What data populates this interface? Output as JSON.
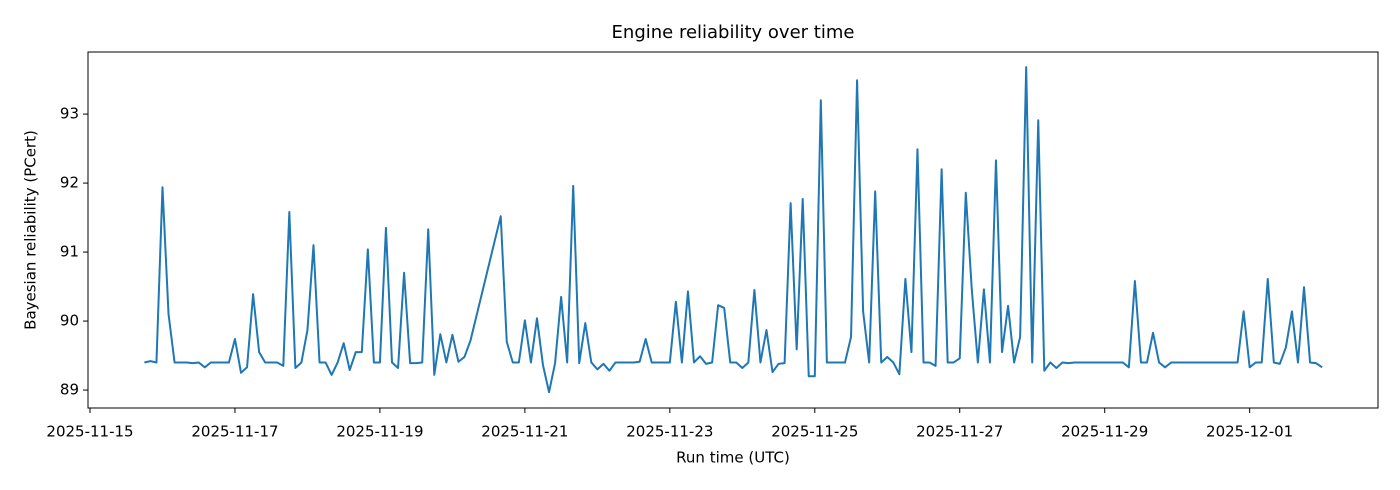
{
  "chart_data": {
    "type": "line",
    "title": "Engine reliability over time",
    "x_label": "Run time (UTC)",
    "y_label": "Bayesian reliability (PCert)",
    "color": "#1f77b4",
    "grid": false,
    "xlim": [
      "2025-11-14 23:20",
      "2025-12-02 18:30"
    ],
    "xticks": [
      "2025-11-15",
      "2025-11-17",
      "2025-11-19",
      "2025-11-21",
      "2025-11-23",
      "2025-11-25",
      "2025-11-27",
      "2025-11-29",
      "2025-12-01"
    ],
    "ylim": [
      88.74,
      93.9
    ],
    "yticks": [
      89,
      90,
      91,
      92,
      93
    ],
    "x": [
      "2025-11-15 18:00",
      "2025-11-15 20:00",
      "2025-11-15 22:00",
      "2025-11-16 00:00",
      "2025-11-16 02:00",
      "2025-11-16 04:00",
      "2025-11-16 06:00",
      "2025-11-16 08:00",
      "2025-11-16 10:00",
      "2025-11-16 12:00",
      "2025-11-16 14:00",
      "2025-11-16 16:00",
      "2025-11-16 18:00",
      "2025-11-16 20:00",
      "2025-11-16 22:00",
      "2025-11-17 00:00",
      "2025-11-17 02:00",
      "2025-11-17 04:00",
      "2025-11-17 06:00",
      "2025-11-17 08:00",
      "2025-11-17 10:00",
      "2025-11-17 12:00",
      "2025-11-17 14:00",
      "2025-11-17 16:00",
      "2025-11-17 18:00",
      "2025-11-17 20:00",
      "2025-11-17 22:00",
      "2025-11-18 00:00",
      "2025-11-18 02:00",
      "2025-11-18 04:00",
      "2025-11-18 06:00",
      "2025-11-18 08:00",
      "2025-11-18 10:00",
      "2025-11-18 12:00",
      "2025-11-18 14:00",
      "2025-11-18 16:00",
      "2025-11-18 18:00",
      "2025-11-18 20:00",
      "2025-11-18 22:00",
      "2025-11-19 00:00",
      "2025-11-19 02:00",
      "2025-11-19 04:00",
      "2025-11-19 06:00",
      "2025-11-19 08:00",
      "2025-11-19 10:00",
      "2025-11-19 12:00",
      "2025-11-19 14:00",
      "2025-11-19 16:00",
      "2025-11-19 18:00",
      "2025-11-19 20:00",
      "2025-11-19 22:00",
      "2025-11-20 00:00",
      "2025-11-20 02:00",
      "2025-11-20 04:00",
      "2025-11-20 06:00",
      "2025-11-20 16:00",
      "2025-11-20 18:00",
      "2025-11-20 20:00",
      "2025-11-20 22:00",
      "2025-11-21 00:00",
      "2025-11-21 02:00",
      "2025-11-21 04:00",
      "2025-11-21 06:00",
      "2025-11-21 08:00",
      "2025-11-21 10:00",
      "2025-11-21 12:00",
      "2025-11-21 14:00",
      "2025-11-21 16:00",
      "2025-11-21 18:00",
      "2025-11-21 20:00",
      "2025-11-21 22:00",
      "2025-11-22 00:00",
      "2025-11-22 02:00",
      "2025-11-22 04:00",
      "2025-11-22 06:00",
      "2025-11-22 08:00",
      "2025-11-22 10:00",
      "2025-11-22 12:00",
      "2025-11-22 14:00",
      "2025-11-22 16:00",
      "2025-11-22 18:00",
      "2025-11-22 20:00",
      "2025-11-22 22:00",
      "2025-11-23 00:00",
      "2025-11-23 02:00",
      "2025-11-23 04:00",
      "2025-11-23 06:00",
      "2025-11-23 08:00",
      "2025-11-23 10:00",
      "2025-11-23 12:00",
      "2025-11-23 14:00",
      "2025-11-23 16:00",
      "2025-11-23 18:00",
      "2025-11-23 20:00",
      "2025-11-23 22:00",
      "2025-11-24 00:00",
      "2025-11-24 02:00",
      "2025-11-24 04:00",
      "2025-11-24 06:00",
      "2025-11-24 08:00",
      "2025-11-24 10:00",
      "2025-11-24 12:00",
      "2025-11-24 14:00",
      "2025-11-24 16:00",
      "2025-11-24 18:00",
      "2025-11-24 20:00",
      "2025-11-24 22:00",
      "2025-11-25 00:00",
      "2025-11-25 02:00",
      "2025-11-25 04:00",
      "2025-11-25 06:00",
      "2025-11-25 08:00",
      "2025-11-25 10:00",
      "2025-11-25 12:00",
      "2025-11-25 14:00",
      "2025-11-25 16:00",
      "2025-11-25 18:00",
      "2025-11-25 20:00",
      "2025-11-25 22:00",
      "2025-11-26 00:00",
      "2025-11-26 02:00",
      "2025-11-26 04:00",
      "2025-11-26 06:00",
      "2025-11-26 08:00",
      "2025-11-26 10:00",
      "2025-11-26 12:00",
      "2025-11-26 14:00",
      "2025-11-26 16:00",
      "2025-11-26 18:00",
      "2025-11-26 20:00",
      "2025-11-26 22:00",
      "2025-11-27 00:00",
      "2025-11-27 02:00",
      "2025-11-27 04:00",
      "2025-11-27 06:00",
      "2025-11-27 08:00",
      "2025-11-27 10:00",
      "2025-11-27 12:00",
      "2025-11-27 14:00",
      "2025-11-27 16:00",
      "2025-11-27 18:00",
      "2025-11-27 20:00",
      "2025-11-27 22:00",
      "2025-11-28 00:00",
      "2025-11-28 02:00",
      "2025-11-28 04:00",
      "2025-11-28 06:00",
      "2025-11-28 08:00",
      "2025-11-28 10:00",
      "2025-11-28 12:00",
      "2025-11-28 14:00",
      "2025-11-28 16:00",
      "2025-11-28 18:00",
      "2025-11-28 20:00",
      "2025-11-28 22:00",
      "2025-11-29 00:00",
      "2025-11-29 02:00",
      "2025-11-29 04:00",
      "2025-11-29 06:00",
      "2025-11-29 08:00",
      "2025-11-29 10:00",
      "2025-11-29 12:00",
      "2025-11-29 14:00",
      "2025-11-29 16:00",
      "2025-11-29 18:00",
      "2025-11-29 20:00",
      "2025-11-29 22:00",
      "2025-11-30 00:00",
      "2025-11-30 02:00",
      "2025-11-30 04:00",
      "2025-11-30 06:00",
      "2025-11-30 08:00",
      "2025-11-30 10:00",
      "2025-11-30 12:00",
      "2025-11-30 14:00",
      "2025-11-30 16:00",
      "2025-11-30 18:00",
      "2025-11-30 20:00",
      "2025-11-30 22:00",
      "2025-12-01 00:00",
      "2025-12-01 02:00",
      "2025-12-01 04:00",
      "2025-12-01 06:00",
      "2025-12-01 08:00",
      "2025-12-01 10:00",
      "2025-12-01 12:00",
      "2025-12-01 14:00",
      "2025-12-01 16:00",
      "2025-12-01 18:00",
      "2025-12-01 20:00",
      "2025-12-01 22:00",
      "2025-12-02 00:00"
    ],
    "values": [
      89.4,
      89.42,
      89.4,
      91.94,
      90.1,
      89.4,
      89.4,
      89.4,
      89.39,
      89.4,
      89.33,
      89.4,
      89.4,
      89.4,
      89.4,
      89.74,
      89.25,
      89.33,
      90.39,
      89.55,
      89.4,
      89.4,
      89.4,
      89.35,
      91.58,
      89.32,
      89.4,
      89.87,
      91.1,
      89.4,
      89.4,
      89.22,
      89.4,
      89.68,
      89.29,
      89.55,
      89.55,
      91.04,
      89.4,
      89.4,
      91.35,
      89.4,
      89.32,
      90.7,
      89.39,
      89.39,
      89.4,
      91.33,
      89.22,
      89.81,
      89.4,
      89.8,
      89.41,
      89.48,
      89.72,
      91.52,
      89.7,
      89.4,
      89.4,
      90.01,
      89.4,
      90.04,
      89.36,
      88.97,
      89.39,
      90.35,
      89.4,
      91.96,
      89.39,
      89.97,
      89.4,
      89.3,
      89.38,
      89.28,
      89.4,
      89.4,
      89.4,
      89.4,
      89.41,
      89.74,
      89.4,
      89.4,
      89.4,
      89.4,
      90.28,
      89.4,
      90.43,
      89.4,
      89.49,
      89.38,
      89.4,
      90.23,
      90.19,
      89.4,
      89.4,
      89.32,
      89.4,
      90.45,
      89.4,
      89.87,
      89.26,
      89.38,
      89.39,
      91.71,
      89.59,
      91.77,
      89.2,
      89.2,
      93.2,
      89.4,
      89.4,
      89.4,
      89.4,
      89.77,
      93.49,
      90.14,
      89.4,
      91.88,
      89.4,
      89.48,
      89.4,
      89.23,
      90.61,
      89.55,
      92.49,
      89.4,
      89.4,
      89.35,
      92.2,
      89.4,
      89.4,
      89.46,
      91.86,
      90.45,
      89.4,
      90.46,
      89.4,
      92.33,
      89.55,
      90.22,
      89.4,
      89.77,
      93.68,
      89.4,
      92.91,
      89.28,
      89.4,
      89.32,
      89.4,
      89.39,
      89.4,
      89.4,
      89.4,
      89.4,
      89.4,
      89.4,
      89.4,
      89.4,
      89.4,
      89.33,
      90.58,
      89.4,
      89.4,
      89.83,
      89.4,
      89.33,
      89.4,
      89.4,
      89.4,
      89.4,
      89.4,
      89.4,
      89.4,
      89.4,
      89.4,
      89.4,
      89.4,
      89.4,
      90.14,
      89.33,
      89.4,
      89.4,
      90.61,
      89.4,
      89.38,
      89.62,
      90.14,
      89.4,
      90.49,
      89.4,
      89.39,
      89.33
    ]
  }
}
